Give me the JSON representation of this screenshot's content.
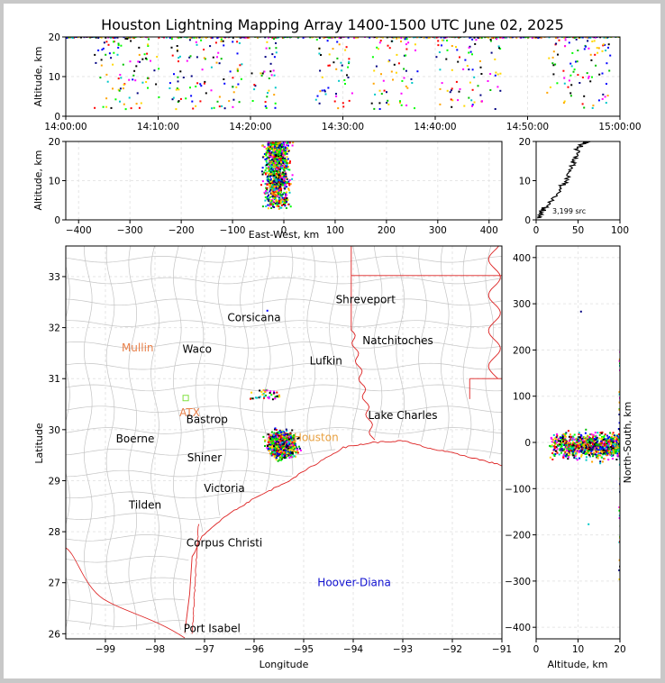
{
  "title": "Houston Lightning Mapping Array 1400-1500 UTC June 02, 2025",
  "chart_data": [
    {
      "id": "time_altitude",
      "type": "scatter",
      "xlabel": "",
      "ylabel": "Altitude, km",
      "x_ticks": [
        "14:00:00",
        "14:10:00",
        "14:20:00",
        "14:30:00",
        "14:40:00",
        "14:50:00",
        "15:00:00"
      ],
      "xlim_minutes": [
        0,
        60
      ],
      "ylim": [
        0,
        20
      ],
      "y_ticks": [
        0,
        10,
        20
      ],
      "grid": true,
      "active_periods_minutes": [
        [
          3,
          10
        ],
        [
          11,
          19
        ],
        [
          20,
          23
        ],
        [
          27,
          31
        ],
        [
          33,
          38
        ],
        [
          40,
          45
        ],
        [
          45.5,
          47
        ],
        [
          52,
          59
        ]
      ],
      "ribbon_altitude_km": 20
    },
    {
      "id": "eastwest_altitude",
      "type": "scatter",
      "xlabel": "East-West, km",
      "ylabel": "Altitude, km",
      "x_ticks": [
        -400,
        -300,
        -200,
        -100,
        0,
        100,
        200,
        300,
        400
      ],
      "xlim": [
        -425,
        425
      ],
      "ylim": [
        0,
        20
      ],
      "y_ticks": [
        0,
        10,
        20
      ],
      "grid": true,
      "cluster": {
        "center_km": -15,
        "spread_km": 22,
        "alt_range_km": [
          3,
          20
        ]
      }
    },
    {
      "id": "altitude_histogram",
      "type": "line",
      "xlabel": "",
      "ylabel": "",
      "x_ticks": [
        0,
        50,
        100
      ],
      "xlim": [
        0,
        100
      ],
      "y_ticks": [
        0,
        10,
        20
      ],
      "ylim": [
        0,
        20
      ],
      "annotation": "3,199 src",
      "profile": [
        [
          0,
          0.5
        ],
        [
          6,
          1.5
        ],
        [
          10,
          3
        ],
        [
          18,
          5
        ],
        [
          28,
          8
        ],
        [
          36,
          10
        ],
        [
          40,
          12
        ],
        [
          44,
          14
        ],
        [
          46,
          16
        ],
        [
          50,
          18
        ],
        [
          56,
          19.5
        ],
        [
          62,
          20
        ]
      ]
    },
    {
      "id": "plan_view",
      "type": "scatter",
      "xlabel": "Longitude",
      "ylabel": "Latitude",
      "x_ticks": [
        -99,
        -98,
        -97,
        -96,
        -95,
        -94,
        -93,
        -92,
        -91
      ],
      "y_ticks": [
        26,
        27,
        28,
        29,
        30,
        31,
        32,
        33
      ],
      "xlim": [
        -99.8,
        -91
      ],
      "ylim": [
        25.9,
        33.6
      ],
      "grid": true,
      "cluster": {
        "center_lon": -95.45,
        "center_lat": 29.72,
        "spread_lon": 0.25,
        "spread_lat": 0.22
      },
      "labels": [
        {
          "text": "Shreveport",
          "lon": -93.75,
          "lat": 32.55,
          "color": "#000000"
        },
        {
          "text": "Corsicana",
          "lon": -96.0,
          "lat": 32.2,
          "color": "#000000"
        },
        {
          "text": "Natchitoches",
          "lon": -93.1,
          "lat": 31.75,
          "color": "#000000"
        },
        {
          "text": "Mullin",
          "lon": -98.35,
          "lat": 31.6,
          "color": "#e8804a"
        },
        {
          "text": "Waco",
          "lon": -97.15,
          "lat": 31.58,
          "color": "#000000"
        },
        {
          "text": "Lufkin",
          "lon": -94.55,
          "lat": 31.35,
          "color": "#000000"
        },
        {
          "text": "ATX",
          "lon": -97.3,
          "lat": 30.33,
          "color": "#e8804a"
        },
        {
          "text": "Lake Charles",
          "lon": -93.0,
          "lat": 30.28,
          "color": "#000000"
        },
        {
          "text": "Bastrop",
          "lon": -96.95,
          "lat": 30.2,
          "color": "#000000"
        },
        {
          "text": "Houston",
          "lon": -94.75,
          "lat": 29.85,
          "color": "#e8a040"
        },
        {
          "text": "Boerne",
          "lon": -98.4,
          "lat": 29.82,
          "color": "#000000"
        },
        {
          "text": "Shiner",
          "lon": -97.0,
          "lat": 29.45,
          "color": "#000000"
        },
        {
          "text": "Victoria",
          "lon": -96.6,
          "lat": 28.85,
          "color": "#000000"
        },
        {
          "text": "Tilden",
          "lon": -98.2,
          "lat": 28.52,
          "color": "#000000"
        },
        {
          "text": "Corpus Christi",
          "lon": -96.6,
          "lat": 27.78,
          "color": "#000000"
        },
        {
          "text": "Hoover-Diana",
          "lon": -93.98,
          "lat": 27.0,
          "color": "#1010d0"
        },
        {
          "text": "Port Isabel",
          "lon": -96.85,
          "lat": 26.1,
          "color": "#000000"
        }
      ]
    },
    {
      "id": "altitude_northsouth",
      "type": "scatter",
      "xlabel": "Altitude, km",
      "ylabel": "North-South, km",
      "x_ticks": [
        0,
        10,
        20
      ],
      "xlim": [
        0,
        20
      ],
      "y_ticks": [
        -400,
        -300,
        -200,
        -100,
        0,
        100,
        200,
        300,
        400
      ],
      "ylim": [
        -425,
        425
      ],
      "grid": true,
      "cluster": {
        "center_km": -5,
        "spread_km": 25,
        "alt_range_km": [
          3,
          20
        ]
      }
    }
  ],
  "colors": {
    "state_border": "#dd2222",
    "county_border": "#c4c4c4",
    "grid": "#e6e6e6",
    "source_palette": [
      "#0000ff",
      "#ff0000",
      "#00c000",
      "#000000",
      "#00c8c8",
      "#ff00ff",
      "#ffa500",
      "#00ff00",
      "#000080",
      "#ffd700"
    ]
  }
}
